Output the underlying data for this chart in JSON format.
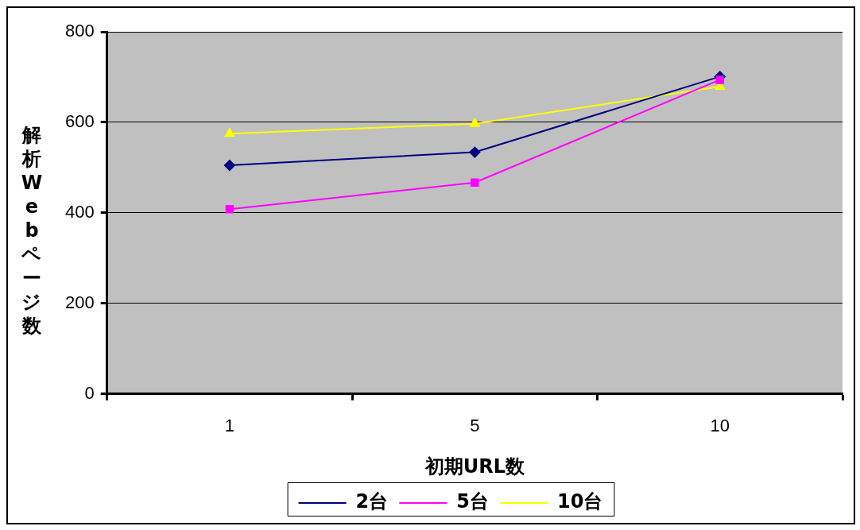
{
  "chart_data": {
    "type": "line",
    "xlabel": "初期URL数",
    "ylabel": "解析Webページ数",
    "categories": [
      "1",
      "5",
      "10"
    ],
    "series": [
      {
        "name": "2台",
        "color": "#000080",
        "marker": "diamond",
        "values": [
          505,
          534,
          701
        ]
      },
      {
        "name": "5台",
        "color": "#ff00ff",
        "marker": "square",
        "values": [
          408,
          467,
          694
        ]
      },
      {
        "name": "10台",
        "color": "#ffff00",
        "marker": "triangle",
        "values": [
          575,
          597,
          679
        ]
      }
    ],
    "ylim": [
      0,
      800
    ],
    "yticks": [
      0,
      200,
      400,
      600,
      800
    ],
    "grid": "y",
    "legend": "bottom"
  }
}
